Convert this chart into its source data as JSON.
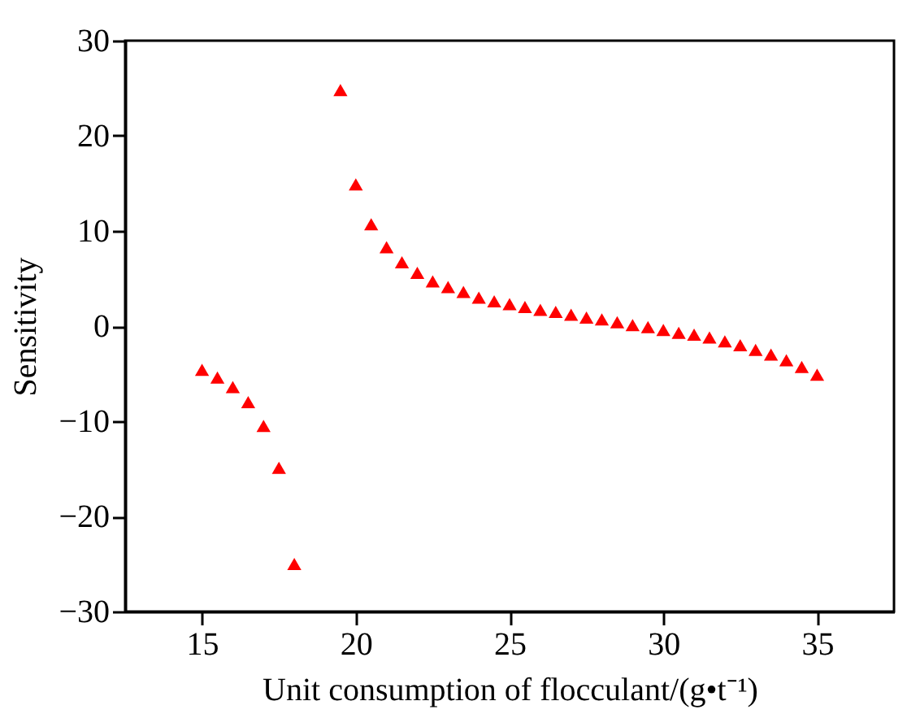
{
  "chart_data": {
    "type": "scatter",
    "xlabel": "Unit consumption of flocculant/(g•t⁻¹)",
    "ylabel": "Sensitivity",
    "xlim": [
      12.5,
      37.5
    ],
    "xticks": [
      15,
      20,
      25,
      30,
      35
    ],
    "ylim": [
      -30,
      30
    ],
    "yticks": [
      -30,
      -20,
      -10,
      0,
      10,
      20,
      30
    ],
    "grid": false,
    "legend": false,
    "marker": "triangle",
    "series": [
      {
        "color": "#ff0000",
        "x": [
          15,
          15.5,
          16,
          16.5,
          17,
          17.5,
          18
        ],
        "values": [
          -4.6,
          -5.4,
          -6.4,
          -8.0,
          -10.5,
          -14.9,
          -25.0
        ]
      },
      {
        "color": "#ff0000",
        "x": [
          19.5,
          20,
          20.5,
          21,
          21.5,
          22,
          22.5,
          23,
          23.5,
          24,
          24.5,
          25,
          25.5,
          26,
          26.5,
          27,
          27.5,
          28,
          28.5,
          29,
          29.5,
          30,
          30.5,
          31,
          31.5,
          32,
          32.5,
          33,
          33.5,
          34,
          34.5,
          35
        ],
        "values": [
          24.8,
          14.9,
          10.7,
          8.3,
          6.7,
          5.6,
          4.7,
          4.1,
          3.6,
          3.0,
          2.6,
          2.3,
          2.0,
          1.7,
          1.5,
          1.2,
          0.9,
          0.7,
          0.4,
          0.1,
          -0.1,
          -0.4,
          -0.7,
          -0.9,
          -1.2,
          -1.6,
          -2.0,
          -2.5,
          -3.0,
          -3.6,
          -4.3,
          -5.1
        ]
      }
    ]
  }
}
